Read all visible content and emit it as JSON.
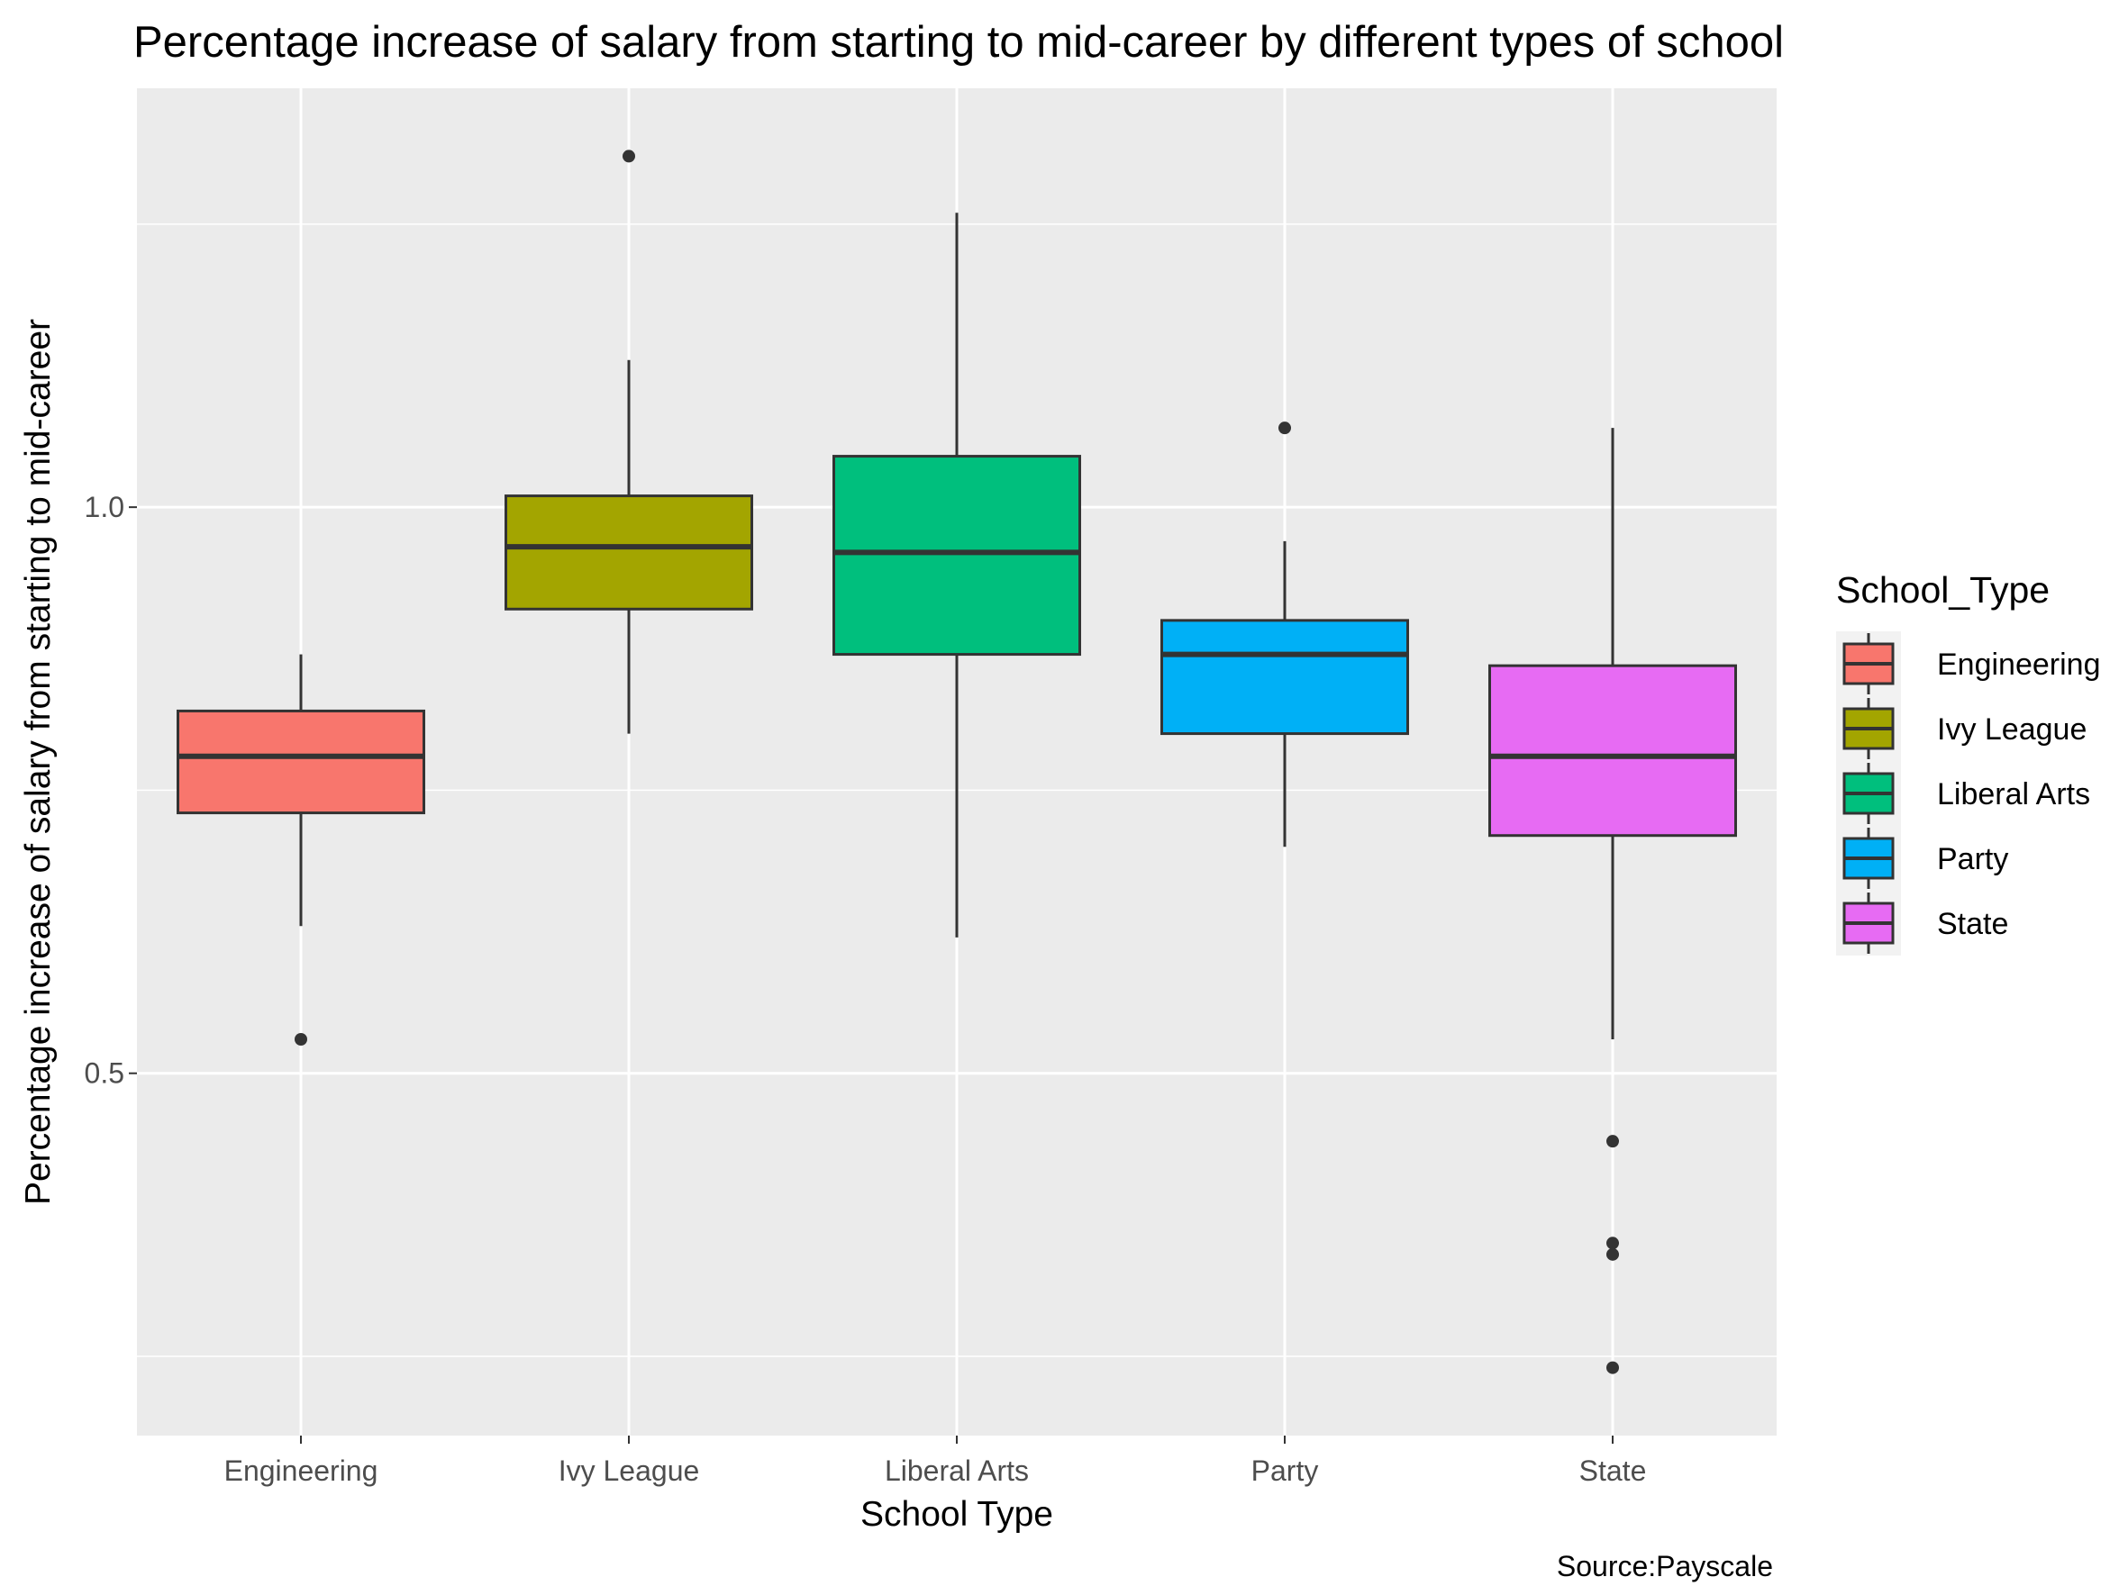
{
  "chart_data": {
    "type": "box",
    "title": "Percentage increase of salary from starting to mid-career by different types of school",
    "xlabel": "School Type",
    "ylabel": "Percentage increase of salary from starting to mid-career",
    "caption": "Source:Payscale",
    "ylim": [
      0.18,
      1.37
    ],
    "yticks": [
      0.5,
      1.0
    ],
    "ytick_labels": [
      "0.5",
      "1.0"
    ],
    "grid": true,
    "legend": {
      "title": "School_Type",
      "position": "right"
    },
    "categories": [
      "Engineering",
      "Ivy League",
      "Liberal Arts",
      "Party",
      "State"
    ],
    "colors": [
      "#F8766D",
      "#A3A500",
      "#00BF7D",
      "#00B0F6",
      "#E76BF3"
    ],
    "boxes": [
      {
        "name": "Engineering",
        "whisker_low": 0.63,
        "q1": 0.73,
        "median": 0.78,
        "q3": 0.82,
        "whisker_high": 0.87,
        "outliers": [
          0.53
        ]
      },
      {
        "name": "Ivy League",
        "whisker_low": 0.8,
        "q1": 0.91,
        "median": 0.965,
        "q3": 1.01,
        "whisker_high": 1.13,
        "outliers": [
          1.31
        ]
      },
      {
        "name": "Liberal Arts",
        "whisker_low": 0.62,
        "q1": 0.87,
        "median": 0.96,
        "q3": 1.045,
        "whisker_high": 1.26,
        "outliers": []
      },
      {
        "name": "Party",
        "whisker_low": 0.7,
        "q1": 0.8,
        "median": 0.87,
        "q3": 0.9,
        "whisker_high": 0.97,
        "outliers": [
          1.07
        ]
      },
      {
        "name": "State",
        "whisker_low": 0.53,
        "q1": 0.71,
        "median": 0.78,
        "q3": 0.86,
        "whisker_high": 1.07,
        "outliers": [
          0.44,
          0.35,
          0.34,
          0.24
        ]
      }
    ]
  }
}
